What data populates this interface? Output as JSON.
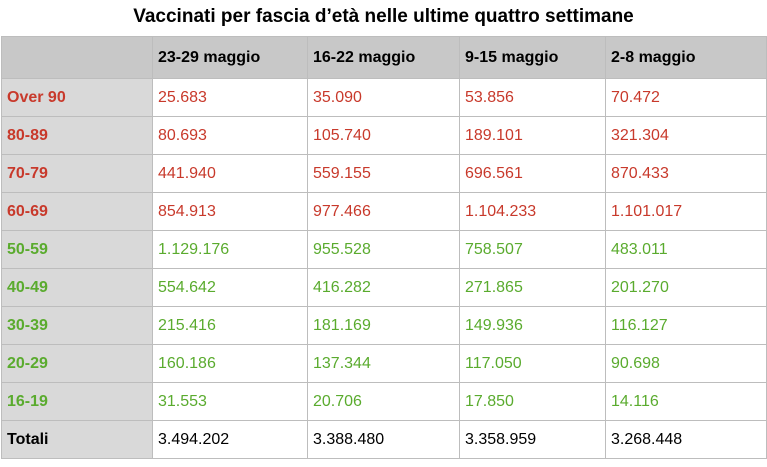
{
  "title": "Vaccinati per fascia d’età nelle ultime quattro settimane",
  "colors": {
    "above60": "#c8392b",
    "below60": "#5aab2e",
    "header_bg": "#c8c8c8",
    "label_bg": "#d9d9d9"
  },
  "chart_data": {
    "type": "table",
    "title": "Vaccinati per fascia d’età nelle ultime quattro settimane",
    "columns": [
      "23-29 maggio",
      "16-22 maggio",
      "9-15 maggio",
      "2-8 maggio"
    ],
    "rows": [
      {
        "label": "Over 90",
        "values": [
          "25.683",
          "35.090",
          "53.856",
          "70.472"
        ],
        "color": "red"
      },
      {
        "label": "80-89",
        "values": [
          "80.693",
          "105.740",
          "189.101",
          "321.304"
        ],
        "color": "red"
      },
      {
        "label": "70-79",
        "values": [
          "441.940",
          "559.155",
          "696.561",
          "870.433"
        ],
        "color": "red"
      },
      {
        "label": "60-69",
        "values": [
          "854.913",
          "977.466",
          "1.104.233",
          "1.101.017"
        ],
        "color": "red"
      },
      {
        "label": "50-59",
        "values": [
          "1.129.176",
          "955.528",
          "758.507",
          "483.011"
        ],
        "color": "green"
      },
      {
        "label": "40-49",
        "values": [
          "554.642",
          "416.282",
          "271.865",
          "201.270"
        ],
        "color": "green"
      },
      {
        "label": "30-39",
        "values": [
          "215.416",
          "181.169",
          "149.936",
          "116.127"
        ],
        "color": "green"
      },
      {
        "label": "20-29",
        "values": [
          "160.186",
          "137.344",
          "117.050",
          "90.698"
        ],
        "color": "green"
      },
      {
        "label": "16-19",
        "values": [
          "31.553",
          "20.706",
          "17.850",
          "14.116"
        ],
        "color": "green"
      }
    ],
    "total": {
      "label": "Totali",
      "values": [
        "3.494.202",
        "3.388.480",
        "3.358.959",
        "3.268.448"
      ]
    }
  }
}
